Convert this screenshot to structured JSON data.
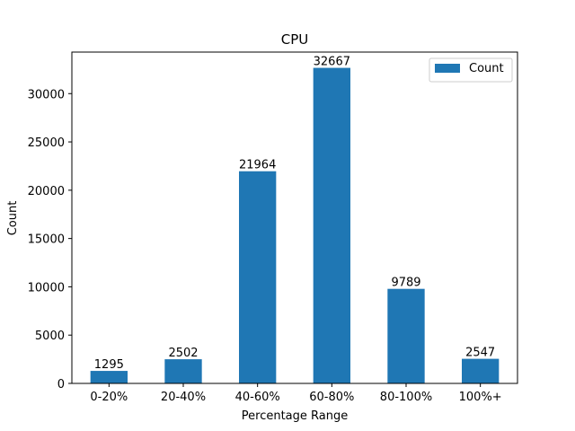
{
  "chart_data": {
    "type": "bar",
    "title": "CPU",
    "xlabel": "Percentage Range",
    "ylabel": "Count",
    "categories": [
      "0-20%",
      "20-40%",
      "40-60%",
      "60-80%",
      "80-100%",
      "100%+"
    ],
    "series": [
      {
        "name": "Count",
        "values": [
          1295,
          2502,
          21964,
          32667,
          9789,
          2547
        ]
      }
    ],
    "ylim": [
      0,
      34300
    ],
    "yticks": [
      0,
      5000,
      10000,
      15000,
      20000,
      25000,
      30000
    ],
    "grid": false,
    "legend_position": "top-right",
    "bar_color": "#1f77b4"
  }
}
